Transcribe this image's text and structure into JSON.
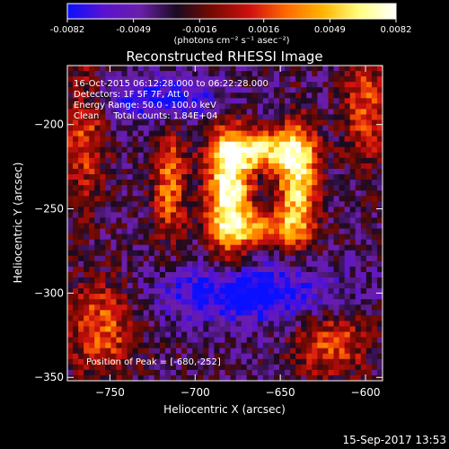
{
  "colorbar": {
    "ticks": [
      "-0.0082",
      "-0.0049",
      "-0.0016",
      "0.0016",
      "0.0049",
      "0.0082"
    ],
    "tick_values": [
      -0.0082,
      -0.0049,
      -0.0016,
      0.0016,
      0.0049,
      0.0082
    ],
    "units": "(photons cm⁻² s⁻¹ asec⁻²)",
    "colors": [
      "#0a10ff",
      "#5a12d0",
      "#6a1fa8",
      "#1a0a20",
      "#7a0a00",
      "#d01010",
      "#ff6a00",
      "#ffb400",
      "#ffff80",
      "#ffffff"
    ]
  },
  "chart_data": {
    "type": "heatmap",
    "title": "Reconstructed RHESSI Image",
    "xlabel": "Heliocentric X (arcsec)",
    "ylabel": "Heliocentric Y (arcsec)",
    "xlim": [
      -775,
      -590
    ],
    "ylim": [
      -352,
      -165
    ],
    "xticks": [
      -750,
      -700,
      -650,
      -600
    ],
    "yticks": [
      -200,
      -250,
      -300,
      -350
    ],
    "xtick_labels": [
      "−750",
      "−700",
      "−650",
      "−600"
    ],
    "ytick_labels": [
      "−200",
      "−250",
      "−300",
      "−350"
    ],
    "annotations": [
      "16-Oct-2015 06:12:28.000 to 06:22:28.000",
      "Detectors: 1F 5F 7F, Att 0",
      "Energy Range: 50.0 - 100.0 keV",
      "Clean     Total counts: 1.84E+04"
    ],
    "peak_label": "Position of Peak = [-680,-252]",
    "peak": [
      -680,
      -252
    ],
    "sources": [
      {
        "x": -680,
        "y": -240,
        "amp": 1.0,
        "sx": 9,
        "sy": 26
      },
      {
        "x": -640,
        "y": -235,
        "amp": 0.85,
        "sx": 8,
        "sy": 24
      },
      {
        "x": -660,
        "y": -215,
        "amp": 0.75,
        "sx": 18,
        "sy": 8
      },
      {
        "x": -660,
        "y": -262,
        "amp": 0.55,
        "sx": 16,
        "sy": 7
      },
      {
        "x": -715,
        "y": -235,
        "amp": 0.55,
        "sx": 7,
        "sy": 24
      },
      {
        "x": -765,
        "y": -205,
        "amp": 0.45,
        "sx": 9,
        "sy": 30
      },
      {
        "x": -755,
        "y": -320,
        "amp": 0.5,
        "sx": 14,
        "sy": 20
      },
      {
        "x": -600,
        "y": -190,
        "amp": 0.45,
        "sx": 9,
        "sy": 25
      },
      {
        "x": -620,
        "y": -330,
        "amp": 0.45,
        "sx": 16,
        "sy": 14
      },
      {
        "x": -670,
        "y": -300,
        "amp": -0.6,
        "sx": 35,
        "sy": 12
      },
      {
        "x": -720,
        "y": -185,
        "amp": -0.4,
        "sx": 30,
        "sy": 10
      }
    ]
  },
  "footer": {
    "timestamp": "15-Sep-2017 13:53"
  }
}
